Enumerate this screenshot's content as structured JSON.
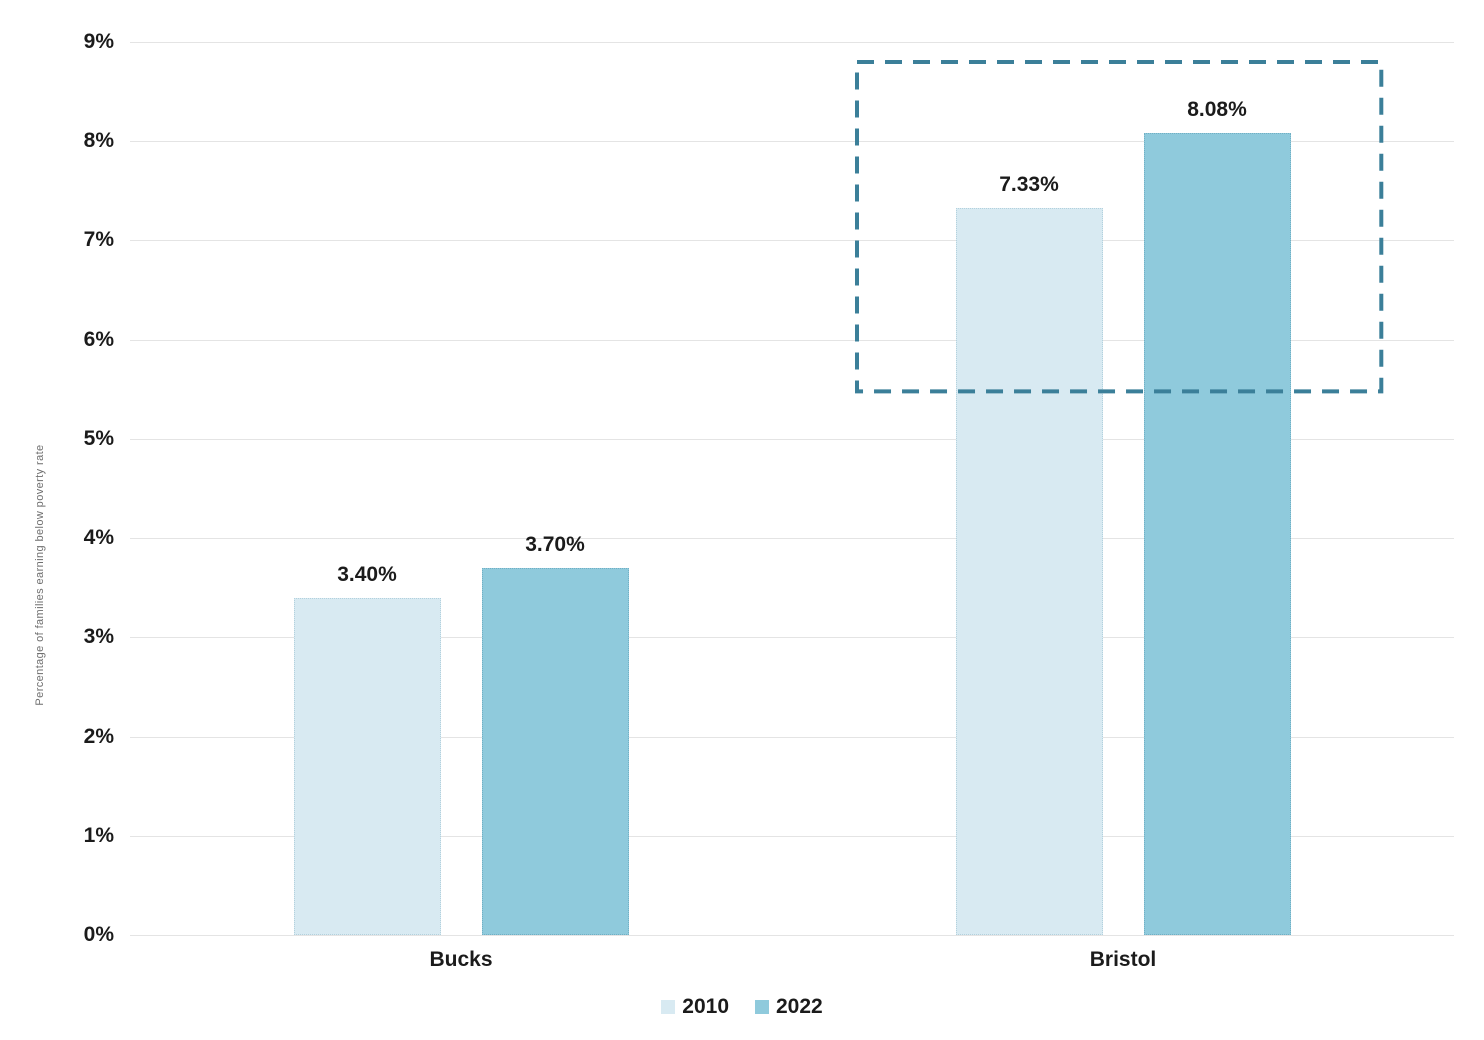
{
  "chart_data": {
    "type": "bar",
    "title": "",
    "xlabel": "",
    "ylabel": "Percentage of families earning below poverty rate",
    "categories": [
      "Bucks",
      "Bristol"
    ],
    "series": [
      {
        "name": "2010",
        "color": "#d8eaf2",
        "values": [
          3.4,
          7.33
        ],
        "labels": [
          "3.40%",
          "7.33%"
        ]
      },
      {
        "name": "2022",
        "color": "#8fcadc",
        "values": [
          3.7,
          8.08
        ],
        "labels": [
          "3.70%",
          "8.08%"
        ]
      }
    ],
    "y_tick_values": [
      0,
      1,
      2,
      3,
      4,
      5,
      6,
      7,
      8,
      9
    ],
    "y_ticks": [
      "0%",
      "1%",
      "2%",
      "3%",
      "4%",
      "5%",
      "6%",
      "7%",
      "8%",
      "9%"
    ],
    "ylim": [
      0,
      9
    ],
    "grid": true,
    "legend_position": "bottom",
    "annotation": {
      "type": "dashed-box",
      "color": "#3b7f99",
      "highlights": "Bristol bars",
      "y_from": 5.48,
      "y_to": 8.8,
      "x_from_frac": 0.549,
      "x_to_frac": 0.945
    }
  },
  "colors": {
    "gridline": "#e4e4e4",
    "text": "#1b1b1b",
    "axis_title": "#6e6e6e"
  }
}
